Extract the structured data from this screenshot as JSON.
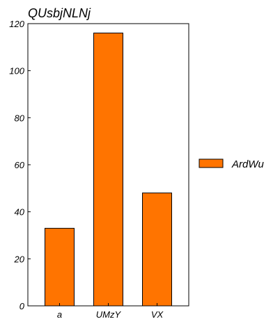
{
  "chart_data": {
    "type": "bar",
    "title": "QUsbjNLNj",
    "xlabel": "",
    "ylabel": "",
    "categories": [
      "a",
      "UMzY",
      "VX"
    ],
    "series": [
      {
        "name": "ArdWu",
        "values": [
          33,
          116,
          48
        ]
      }
    ],
    "ylim": [
      0,
      120
    ],
    "yticks": [
      0,
      20,
      40,
      60,
      80,
      100,
      120
    ],
    "grid": false,
    "legend_position": "right",
    "colors": {
      "bar_fill": "#ff7400",
      "bar_stroke": "#000000",
      "axis": "#000000"
    }
  }
}
